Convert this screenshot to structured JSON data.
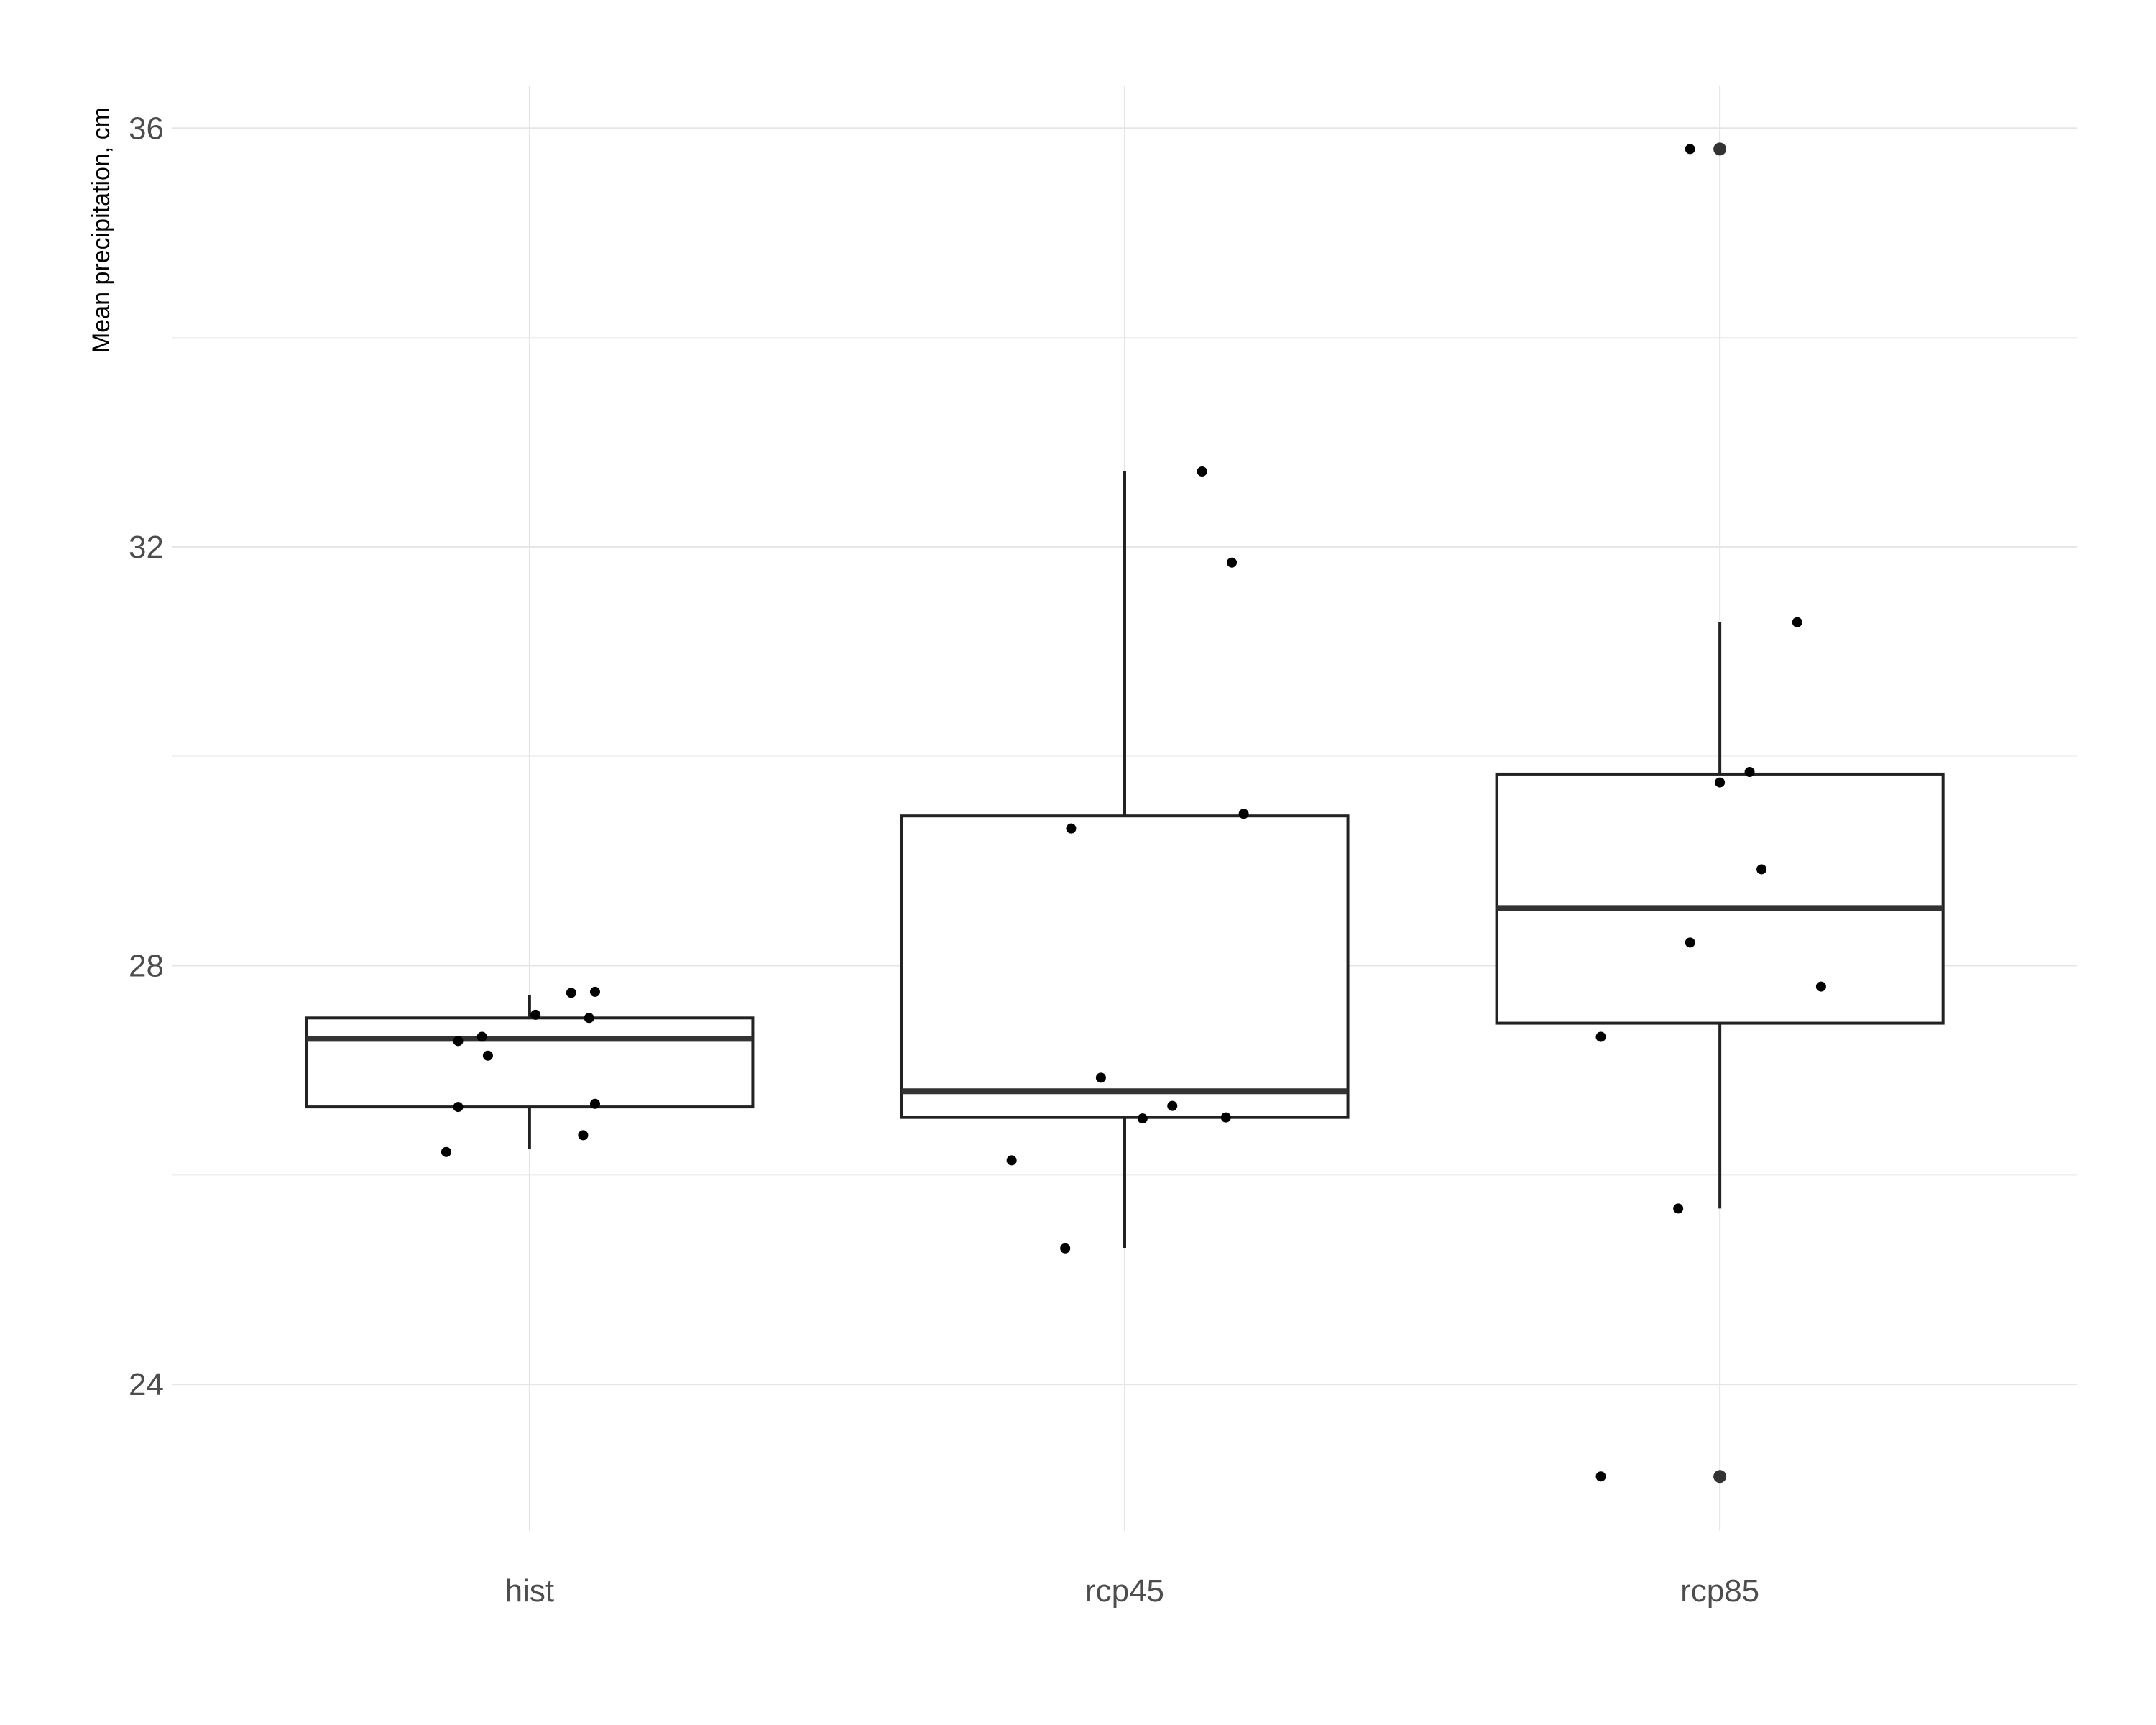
{
  "chart_data": {
    "type": "boxplot",
    "title": "",
    "xlabel": "",
    "ylabel": "Mean precipitation, cm",
    "ylim": [
      22.6,
      36.4
    ],
    "y_ticks": [
      24,
      28,
      32,
      36
    ],
    "y_tick_labels": [
      "24",
      "28",
      "32",
      "36"
    ],
    "y_minor_ticks": [
      26,
      30,
      34
    ],
    "grid": true,
    "legend": "none",
    "categories": [
      "hist",
      "rcp45",
      "rcp85"
    ],
    "boxes": [
      {
        "category": "hist",
        "whisker_low": 26.25,
        "q1": 26.65,
        "median": 27.3,
        "q3": 27.5,
        "whisker_high": 27.72,
        "points": [
          {
            "dx": -0.14,
            "y": 26.22
          },
          {
            "dx": -0.12,
            "y": 27.28
          },
          {
            "dx": -0.12,
            "y": 26.65
          },
          {
            "dx": -0.08,
            "y": 27.32
          },
          {
            "dx": -0.07,
            "y": 27.14
          },
          {
            "dx": 0.01,
            "y": 27.53
          },
          {
            "dx": 0.07,
            "y": 27.74
          },
          {
            "dx": 0.09,
            "y": 26.38
          },
          {
            "dx": 0.1,
            "y": 27.5
          },
          {
            "dx": 0.11,
            "y": 27.75
          },
          {
            "dx": 0.11,
            "y": 26.68
          }
        ],
        "outliers": []
      },
      {
        "category": "rcp45",
        "whisker_low": 25.3,
        "q1": 26.55,
        "median": 26.8,
        "q3": 29.43,
        "whisker_high": 32.72,
        "points": [
          {
            "dx": -0.19,
            "y": 26.14
          },
          {
            "dx": -0.1,
            "y": 25.3
          },
          {
            "dx": -0.09,
            "y": 29.31
          },
          {
            "dx": -0.04,
            "y": 26.93
          },
          {
            "dx": 0.03,
            "y": 26.54
          },
          {
            "dx": 0.08,
            "y": 26.66
          },
          {
            "dx": 0.13,
            "y": 32.72
          },
          {
            "dx": 0.17,
            "y": 26.55
          },
          {
            "dx": 0.18,
            "y": 31.85
          },
          {
            "dx": 0.2,
            "y": 29.45
          }
        ],
        "outliers": []
      },
      {
        "category": "rcp85",
        "whisker_low": 25.68,
        "q1": 27.45,
        "median": 28.55,
        "q3": 29.83,
        "whisker_high": 31.28,
        "points": [
          {
            "dx": -0.2,
            "y": 23.12
          },
          {
            "dx": -0.2,
            "y": 27.32
          },
          {
            "dx": -0.07,
            "y": 25.68
          },
          {
            "dx": -0.05,
            "y": 35.8
          },
          {
            "dx": -0.05,
            "y": 28.22
          },
          {
            "dx": 0.0,
            "y": 29.75
          },
          {
            "dx": 0.05,
            "y": 29.85
          },
          {
            "dx": 0.07,
            "y": 28.92
          },
          {
            "dx": 0.13,
            "y": 31.28
          },
          {
            "dx": 0.17,
            "y": 27.8
          }
        ],
        "outliers": [
          {
            "dx": 0.0,
            "y": 35.8
          },
          {
            "dx": 0.0,
            "y": 23.12
          }
        ]
      }
    ]
  }
}
